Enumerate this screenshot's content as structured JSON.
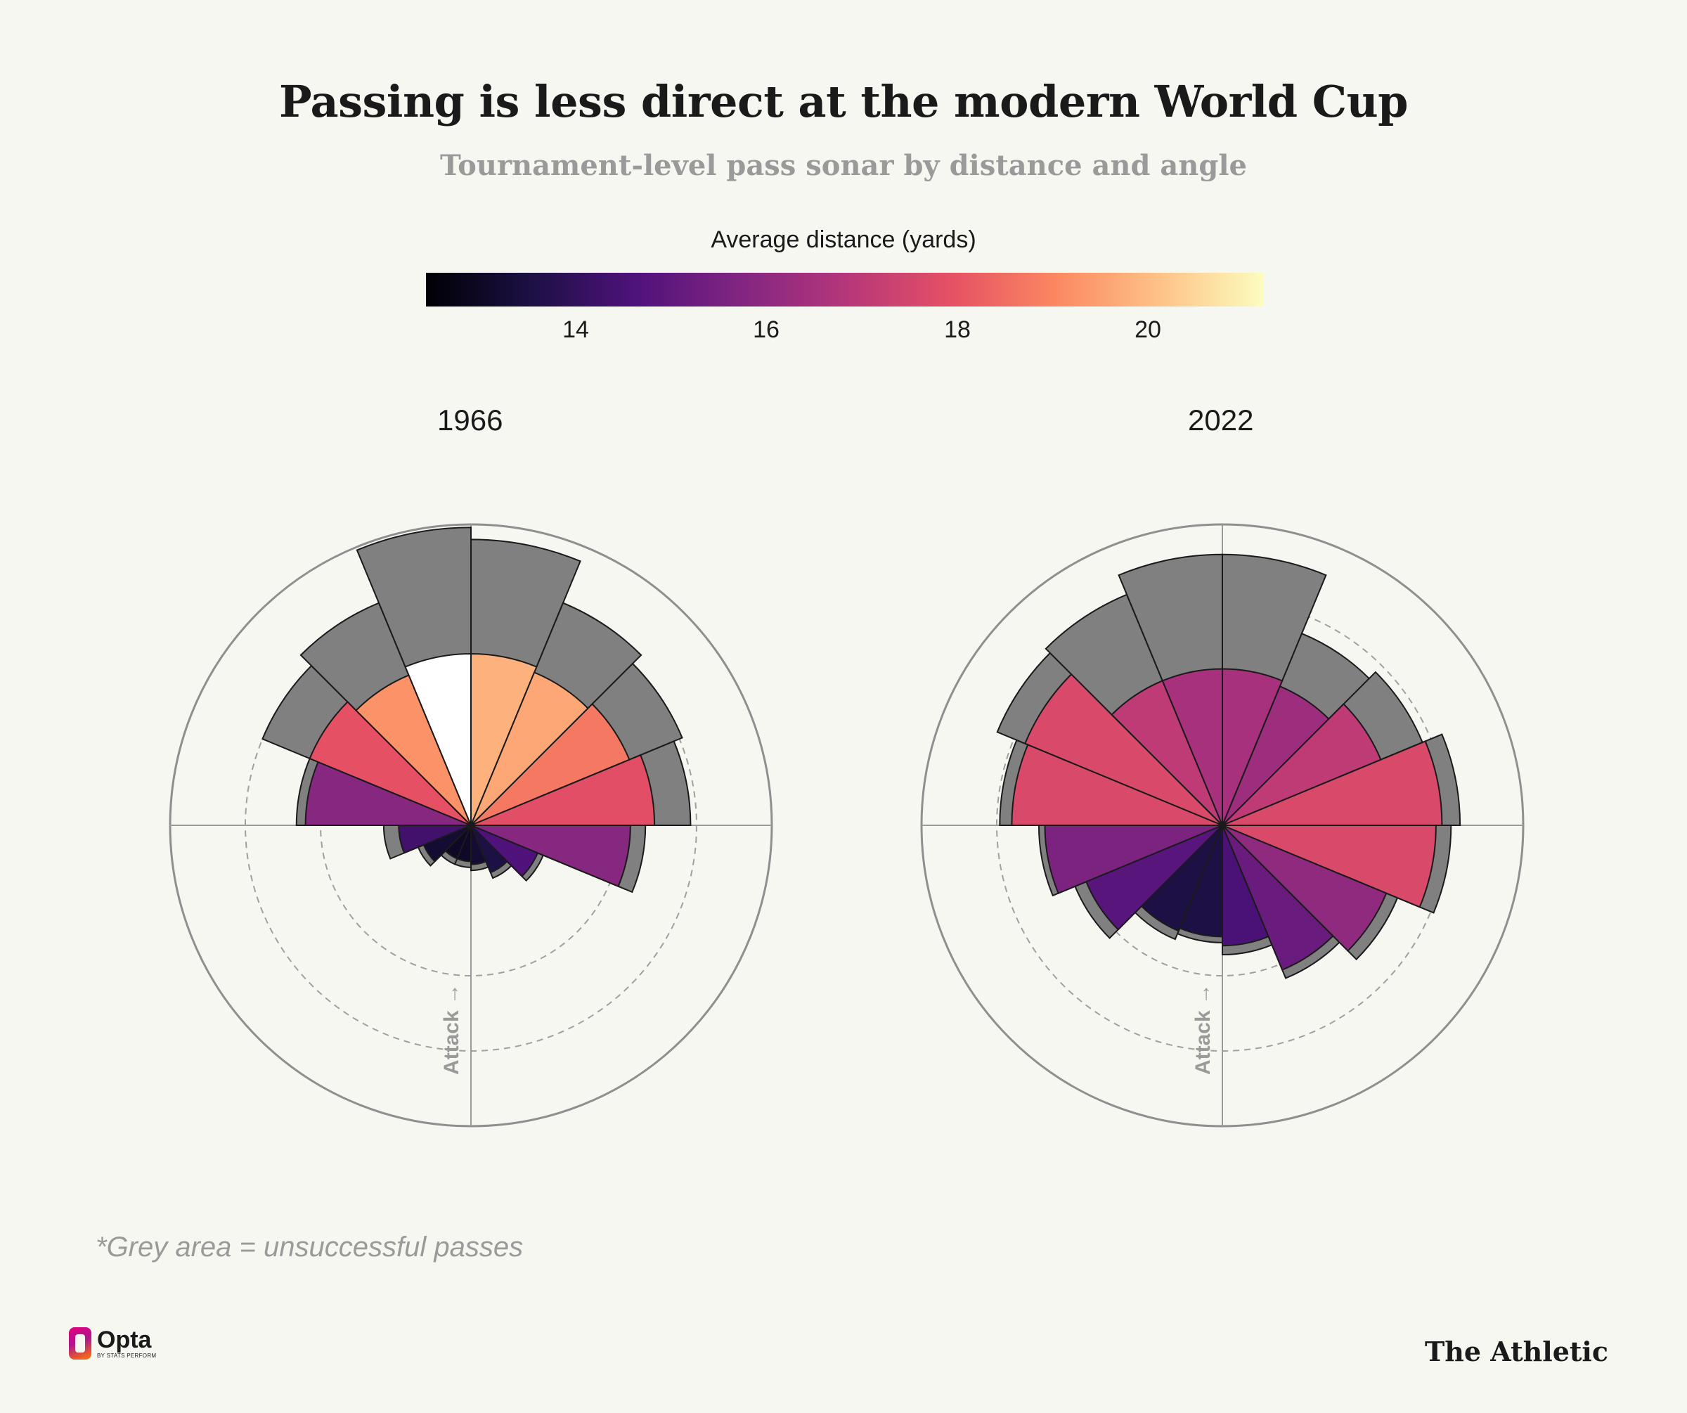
{
  "title": "Passing is less direct at the modern World Cup",
  "subtitle": "Tournament-level pass sonar by distance and angle",
  "colorbar": {
    "label": "Average distance (yards)",
    "ticks": [
      "14",
      "16",
      "18",
      "20"
    ]
  },
  "footnote": "*Grey area = unsuccessful passes",
  "branding": {
    "opta": "Opta",
    "opta_sub": "BY STATS PERFORM",
    "athletic": "The Athletic"
  },
  "chart_data": [
    {
      "type": "polar-bar",
      "title": "1966",
      "axis_label": "Attack →",
      "colorbar_range": [
        12.4,
        21.2
      ],
      "bin_width_deg": 22.5,
      "units": "radius relative to outer circle (outer circle = 1.0)",
      "angle_deg": [
        11.25,
        33.75,
        56.25,
        78.75,
        101.25,
        123.75,
        146.25,
        168.75,
        191.25,
        213.75,
        236.25,
        258.75,
        281.25,
        303.75,
        326.25,
        348.75
      ],
      "successful": [
        0.57,
        0.55,
        0.57,
        0.61,
        0.53,
        0.24,
        0.17,
        0.13,
        0.12,
        0.12,
        0.17,
        0.24,
        0.55,
        0.58,
        0.54,
        0.57
      ],
      "total": [
        0.95,
        0.8,
        0.76,
        0.73,
        0.58,
        0.26,
        0.19,
        0.15,
        0.14,
        0.14,
        0.19,
        0.29,
        0.58,
        0.75,
        0.8,
        0.99
      ],
      "avg_distance_yards": [
        19.8,
        19.6,
        18.7,
        17.8,
        15.8,
        14.6,
        13.5,
        13.2,
        13.0,
        13.0,
        13.2,
        14.3,
        15.8,
        17.9,
        19.2,
        21.0
      ]
    },
    {
      "type": "polar-bar",
      "title": "2022",
      "axis_label": "Attack →",
      "colorbar_range": [
        12.4,
        21.2
      ],
      "bin_width_deg": 22.5,
      "units": "radius relative to outer circle (outer circle = 1.0)",
      "angle_deg": [
        11.25,
        33.75,
        56.25,
        78.75,
        101.25,
        123.75,
        146.25,
        168.75,
        191.25,
        213.75,
        236.25,
        258.75,
        281.25,
        303.75,
        326.25,
        348.75
      ],
      "successful": [
        0.52,
        0.5,
        0.57,
        0.73,
        0.71,
        0.59,
        0.52,
        0.4,
        0.37,
        0.38,
        0.49,
        0.59,
        0.7,
        0.71,
        0.52,
        0.52
      ],
      "total": [
        0.9,
        0.69,
        0.72,
        0.79,
        0.76,
        0.63,
        0.55,
        0.43,
        0.39,
        0.41,
        0.53,
        0.61,
        0.74,
        0.81,
        0.83,
        0.9
      ],
      "avg_distance_yards": [
        16.5,
        16.3,
        17.0,
        17.6,
        17.6,
        16.0,
        15.2,
        14.5,
        13.5,
        13.5,
        14.8,
        15.6,
        17.6,
        17.6,
        17.0,
        16.5
      ]
    }
  ]
}
